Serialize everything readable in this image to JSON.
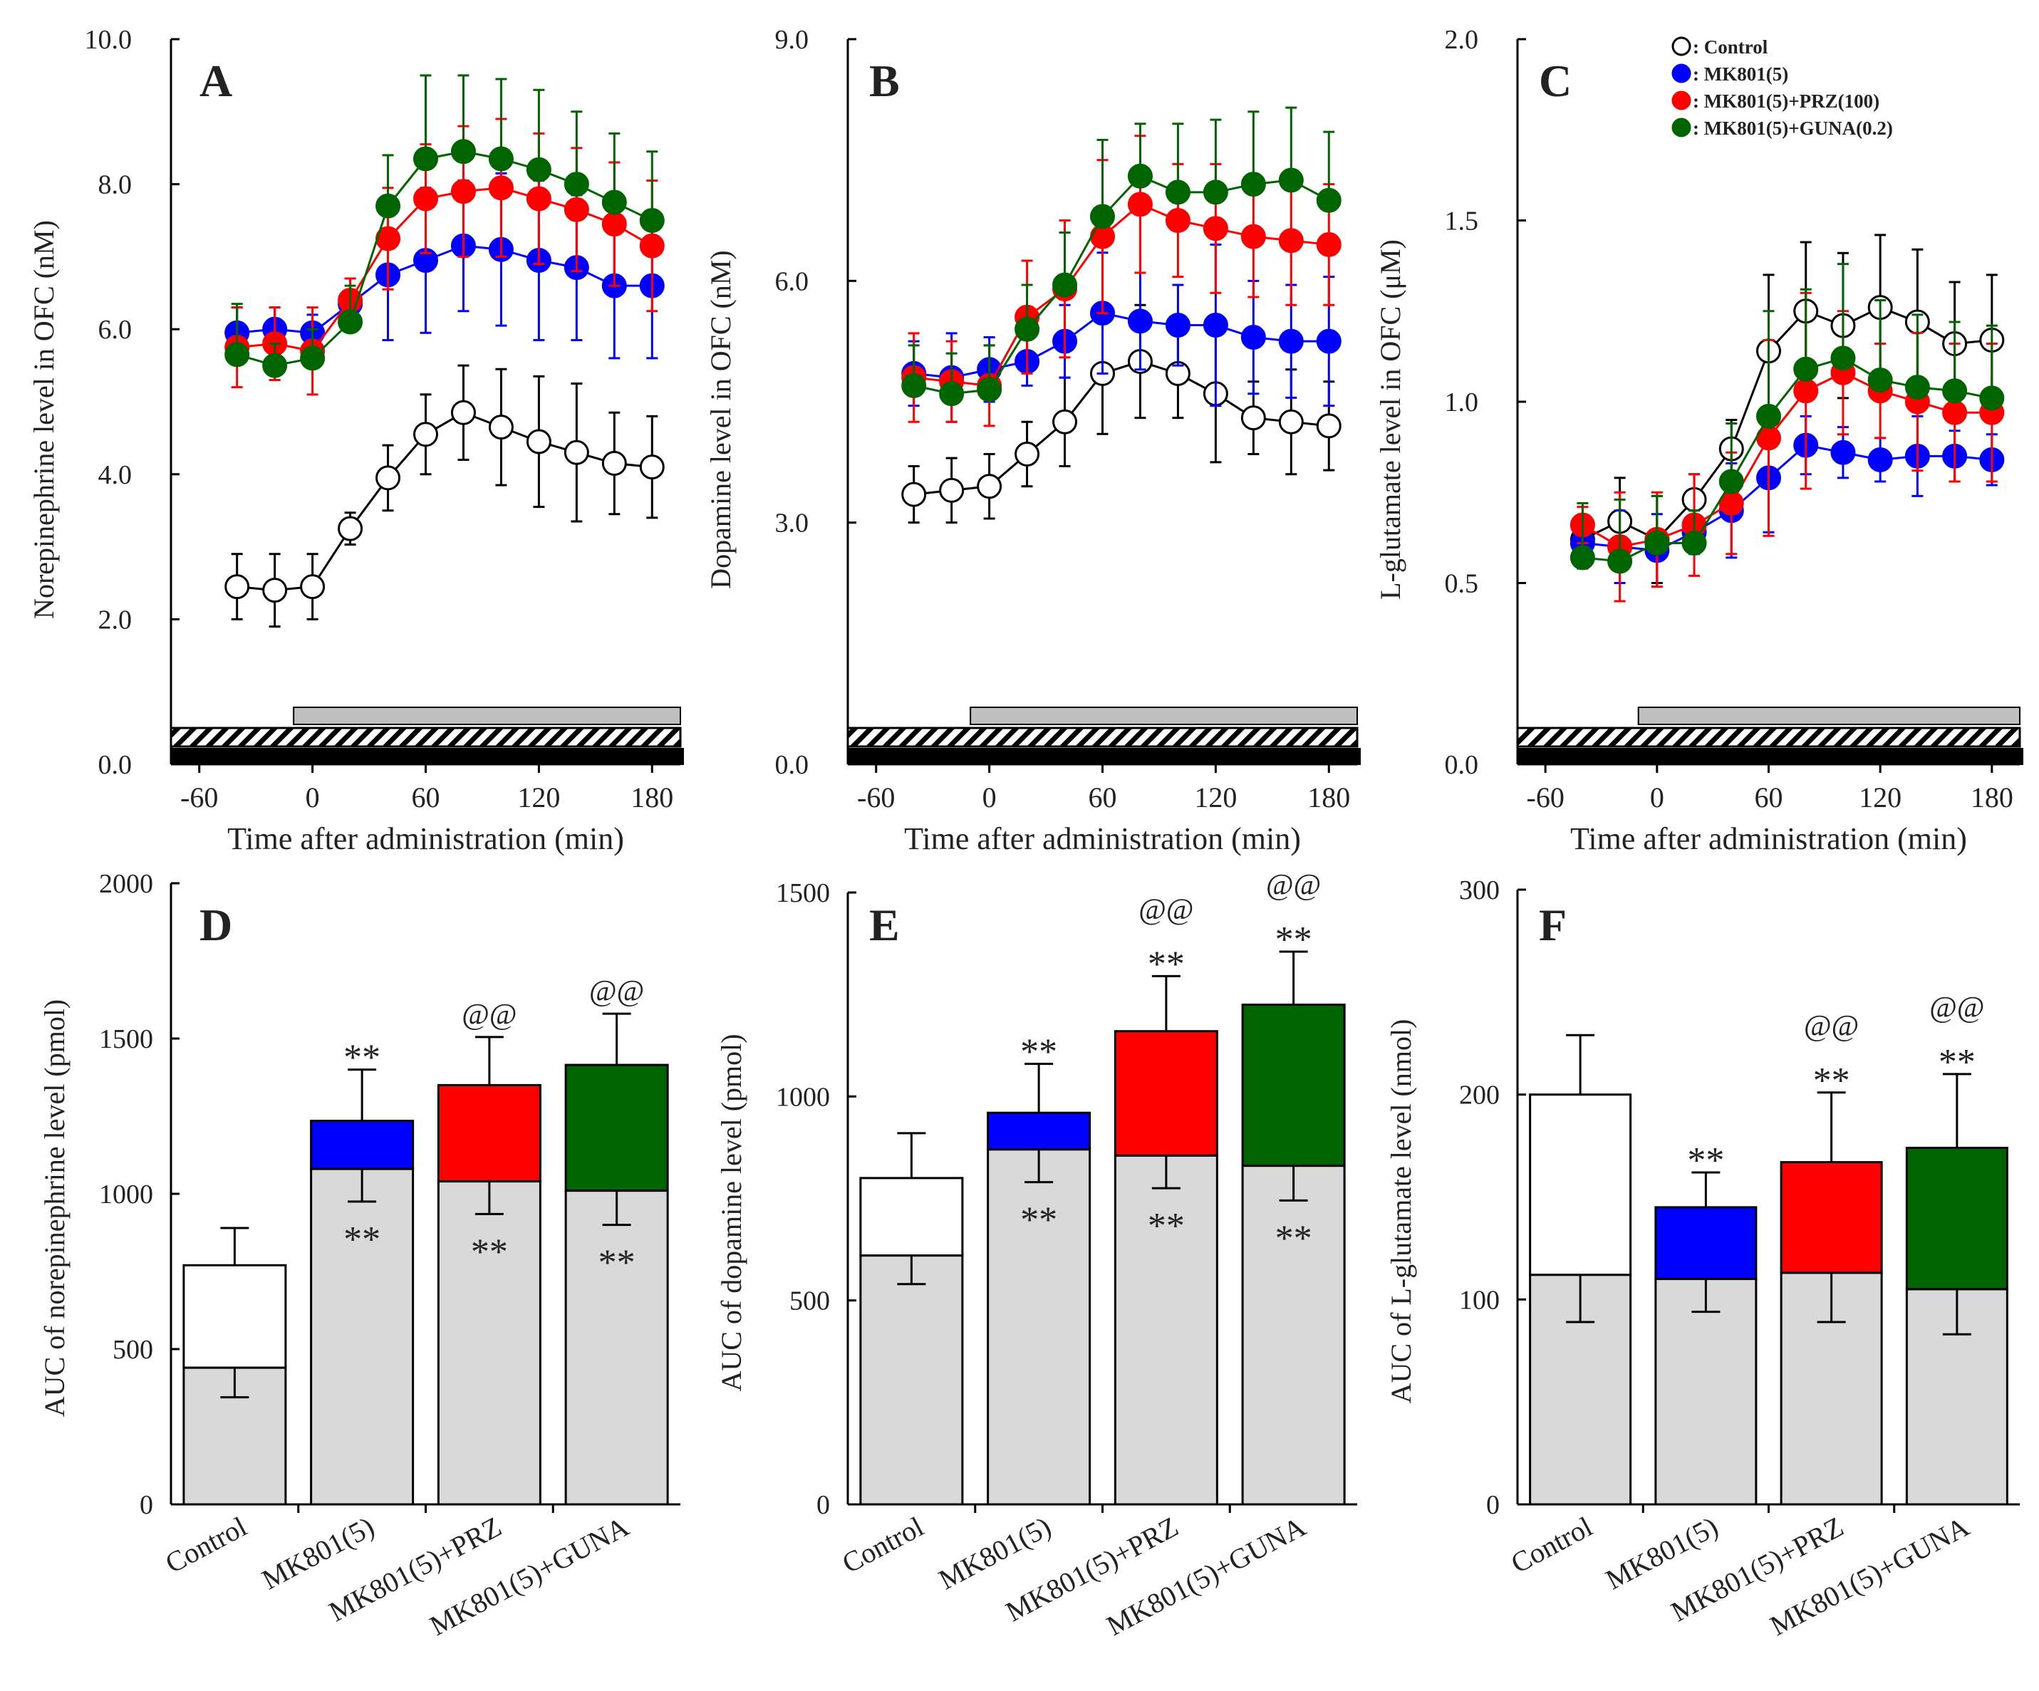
{
  "figure": {
    "x_label_time": "Time after administration (min)",
    "legend": [
      {
        "label": ": Control",
        "color": "#000000",
        "fill": "#ffffff"
      },
      {
        "label": ": MK801(5)",
        "color": "#0000ff",
        "fill": "#0000ff"
      },
      {
        "label": ": MK801(5)+PRZ(100)",
        "color": "#ff0000",
        "fill": "#ff0000"
      },
      {
        "label": ": MK801(5)+GUNA(0.2)",
        "color": "#006400",
        "fill": "#006400"
      }
    ],
    "colors": {
      "control": "#ffffff",
      "mk801": "#0000ff",
      "prz": "#ff0000",
      "guna": "#006400",
      "base": "#d9d9d9",
      "period_gray": "#c0c0c0"
    }
  },
  "chart_data": [
    {
      "panel": "A",
      "type": "line",
      "ylabel": "Norepinephrine level in OFC (nM)",
      "xlabel": "Time after administration (min)",
      "xlim": [
        -75,
        195
      ],
      "ylim": [
        0,
        10
      ],
      "xticks": [
        -60,
        0,
        60,
        120,
        180
      ],
      "xtick_labels": [
        "-60",
        "0",
        "60",
        "120",
        "180"
      ],
      "yticks": [
        0,
        2,
        4,
        6,
        8,
        10
      ],
      "ytick_labels": [
        "0.0",
        "2.0",
        "4.0",
        "6.0",
        "8.0",
        "10.0"
      ],
      "period_bar": [
        -10,
        195
      ],
      "x": [
        -40,
        -20,
        0,
        20,
        40,
        60,
        80,
        100,
        120,
        140,
        160,
        180
      ],
      "series": [
        {
          "name": "Control",
          "values": [
            2.45,
            2.4,
            2.45,
            3.25,
            3.95,
            4.55,
            4.85,
            4.65,
            4.45,
            4.3,
            4.15,
            4.1
          ],
          "err": [
            0.45,
            0.5,
            0.45,
            0.22,
            0.45,
            0.55,
            0.65,
            0.8,
            0.9,
            0.95,
            0.7,
            0.7
          ]
        },
        {
          "name": "MK801(5)",
          "values": [
            5.95,
            6.0,
            5.95,
            6.35,
            6.75,
            6.95,
            7.15,
            7.1,
            6.95,
            6.85,
            6.6,
            6.6
          ],
          "err": [
            0.35,
            0.3,
            0.25,
            0.35,
            0.9,
            1.0,
            0.9,
            1.05,
            1.1,
            1.0,
            1.0,
            1.0
          ]
        },
        {
          "name": "MK801(5)+PRZ(100)",
          "values": [
            5.75,
            5.8,
            5.7,
            6.4,
            7.25,
            7.8,
            7.9,
            7.95,
            7.8,
            7.65,
            7.45,
            7.15
          ],
          "err": [
            0.55,
            0.5,
            0.6,
            0.3,
            0.7,
            0.75,
            0.9,
            0.95,
            0.9,
            0.85,
            0.85,
            0.9
          ]
        },
        {
          "name": "MK801(5)+GUNA(0.2)",
          "values": [
            5.65,
            5.5,
            5.6,
            6.1,
            7.7,
            8.35,
            8.45,
            8.35,
            8.2,
            8.0,
            7.75,
            7.5
          ],
          "err": [
            0.7,
            0.3,
            0.4,
            0.5,
            0.7,
            1.15,
            1.05,
            1.1,
            1.1,
            1.0,
            0.95,
            0.95
          ]
        }
      ]
    },
    {
      "panel": "B",
      "type": "line",
      "ylabel": "Dopamine level in OFC (nM)",
      "xlabel": "Time after administration (min)",
      "xlim": [
        -75,
        195
      ],
      "ylim": [
        0,
        9
      ],
      "xticks": [
        -60,
        0,
        60,
        120,
        180
      ],
      "xtick_labels": [
        "-60",
        "0",
        "60",
        "120",
        "180"
      ],
      "yticks": [
        0,
        3,
        6,
        9
      ],
      "ytick_labels": [
        "0.0",
        "3.0",
        "6.0",
        "9.0"
      ],
      "period_bar": [
        -10,
        195
      ],
      "x": [
        -40,
        -20,
        0,
        20,
        40,
        60,
        80,
        100,
        120,
        140,
        160,
        180
      ],
      "series": [
        {
          "name": "Control",
          "values": [
            3.35,
            3.4,
            3.45,
            3.85,
            4.25,
            4.85,
            5.0,
            4.85,
            4.6,
            4.3,
            4.25,
            4.2
          ],
          "err": [
            0.35,
            0.4,
            0.4,
            0.4,
            0.55,
            0.75,
            0.7,
            0.55,
            0.85,
            0.45,
            0.65,
            0.55
          ]
        },
        {
          "name": "MK801(5)",
          "values": [
            4.85,
            4.8,
            4.9,
            5.0,
            5.25,
            5.6,
            5.5,
            5.45,
            5.45,
            5.3,
            5.25,
            5.25
          ],
          "err": [
            0.4,
            0.55,
            0.4,
            0.3,
            0.45,
            0.75,
            0.6,
            0.5,
            1.0,
            0.7,
            0.7,
            0.8
          ]
        },
        {
          "name": "MK801(5)+PRZ(100)",
          "values": [
            4.8,
            4.75,
            4.7,
            5.55,
            5.9,
            6.55,
            6.95,
            6.75,
            6.65,
            6.55,
            6.5,
            6.45
          ],
          "err": [
            0.55,
            0.5,
            0.5,
            0.7,
            0.85,
            0.95,
            0.85,
            0.7,
            0.8,
            0.75,
            0.8,
            0.75
          ]
        },
        {
          "name": "MK801(5)+GUNA(0.2)",
          "values": [
            4.7,
            4.6,
            4.65,
            5.4,
            5.95,
            6.8,
            7.3,
            7.1,
            7.1,
            7.2,
            7.25,
            7.0
          ],
          "err": [
            0.5,
            0.5,
            0.55,
            0.55,
            0.65,
            0.95,
            0.65,
            0.85,
            0.9,
            0.9,
            0.9,
            0.85
          ]
        }
      ]
    },
    {
      "panel": "C",
      "type": "line",
      "ylabel": "L-glutamate level in OFC (μM)",
      "xlabel": "Time after administration (min)",
      "xlim": [
        -75,
        195
      ],
      "ylim": [
        0,
        2
      ],
      "xticks": [
        -60,
        0,
        60,
        120,
        180
      ],
      "xtick_labels": [
        "-60",
        "0",
        "60",
        "120",
        "180"
      ],
      "yticks": [
        0,
        0.5,
        1.0,
        1.5,
        2.0
      ],
      "ytick_labels": [
        "0.0",
        "0.5",
        "1.0",
        "1.5",
        "2.0"
      ],
      "period_bar": [
        -10,
        195
      ],
      "x": [
        -40,
        -20,
        0,
        20,
        40,
        60,
        80,
        100,
        120,
        140,
        160,
        180
      ],
      "series": [
        {
          "name": "Control",
          "values": [
            0.62,
            0.67,
            0.62,
            0.73,
            0.87,
            1.14,
            1.25,
            1.21,
            1.26,
            1.22,
            1.16,
            1.17
          ],
          "err": [
            0.06,
            0.12,
            0.12,
            0.07,
            0.08,
            0.21,
            0.19,
            0.2,
            0.2,
            0.2,
            0.17,
            0.18
          ]
        },
        {
          "name": "MK801(5)",
          "values": [
            0.61,
            0.6,
            0.59,
            0.64,
            0.7,
            0.79,
            0.88,
            0.86,
            0.84,
            0.85,
            0.85,
            0.84
          ],
          "err": [
            0.07,
            0.1,
            0.1,
            0.06,
            0.13,
            0.15,
            0.08,
            0.07,
            0.06,
            0.11,
            0.07,
            0.07
          ]
        },
        {
          "name": "MK801(5)+PRZ(100)",
          "values": [
            0.66,
            0.6,
            0.62,
            0.66,
            0.72,
            0.9,
            1.03,
            1.08,
            1.03,
            1.0,
            0.97,
            0.97
          ],
          "err": [
            0.05,
            0.15,
            0.13,
            0.14,
            0.14,
            0.27,
            0.27,
            0.17,
            0.13,
            0.19,
            0.19,
            0.19
          ]
        },
        {
          "name": "MK801(5)+GUNA(0.2)",
          "values": [
            0.57,
            0.56,
            0.61,
            0.61,
            0.78,
            0.96,
            1.09,
            1.12,
            1.06,
            1.04,
            1.03,
            1.01
          ],
          "err": [
            0.15,
            0.17,
            0.13,
            0.09,
            0.16,
            0.29,
            0.22,
            0.26,
            0.22,
            0.2,
            0.19,
            0.2
          ]
        }
      ]
    },
    {
      "panel": "D",
      "type": "bar",
      "ylabel": "AUC of norepinephrine level (pmol)",
      "ylim": [
        0,
        2000
      ],
      "yticks": [
        0,
        500,
        1000,
        1500,
        2000
      ],
      "ytick_labels": [
        "0",
        "500",
        "1000",
        "1500",
        "2000"
      ],
      "categories": [
        "Control",
        "MK801(5)",
        "MK801(5)+PRZ",
        "MK801(5)+GUNA"
      ],
      "base": [
        440,
        1080,
        1040,
        1010
      ],
      "base_err": [
        95,
        105,
        105,
        110
      ],
      "total": [
        770,
        1235,
        1350,
        1415
      ],
      "total_err": [
        120,
        165,
        155,
        165
      ],
      "base_marks": [
        "",
        "**",
        "**",
        "**"
      ],
      "top_marks": [
        "",
        "**",
        "",
        ""
      ],
      "top_marks2": [
        "",
        "",
        "@@",
        "@@"
      ]
    },
    {
      "panel": "E",
      "type": "bar",
      "ylabel": "AUC of dopamine level (pmol)",
      "ylim": [
        0,
        1500
      ],
      "yticks": [
        0,
        500,
        1000,
        1500
      ],
      "ytick_labels": [
        "0",
        "500",
        "1000",
        "1500"
      ],
      "categories": [
        "Control",
        "MK801(5)",
        "MK801(5)+PRZ",
        "MK801(5)+GUNA"
      ],
      "base": [
        610,
        870,
        855,
        830
      ],
      "base_err": [
        70,
        80,
        80,
        85
      ],
      "total": [
        800,
        960,
        1160,
        1225
      ],
      "total_err": [
        110,
        120,
        135,
        130
      ],
      "base_marks": [
        "",
        "**",
        "**",
        "**"
      ],
      "top_marks": [
        "",
        "**",
        "**",
        "**"
      ],
      "top_marks2": [
        "",
        "",
        "@@",
        "@@"
      ]
    },
    {
      "panel": "F",
      "type": "bar",
      "ylabel": "AUC of L-glutamate level (nmol)",
      "ylim": [
        0,
        300
      ],
      "yticks": [
        0,
        100,
        200,
        300
      ],
      "ytick_labels": [
        "0",
        "100",
        "200",
        "300"
      ],
      "categories": [
        "Control",
        "MK801(5)",
        "MK801(5)+PRZ",
        "MK801(5)+GUNA"
      ],
      "base": [
        112,
        110,
        113,
        105
      ],
      "base_err": [
        23,
        16,
        24,
        22
      ],
      "total": [
        200,
        145,
        167,
        174
      ],
      "total_err": [
        29,
        17,
        34,
        36
      ],
      "base_marks": [
        "",
        "",
        "",
        ""
      ],
      "top_marks": [
        "",
        "**",
        "**",
        "**"
      ],
      "top_marks2": [
        "",
        "",
        "@@",
        "@@"
      ]
    }
  ]
}
